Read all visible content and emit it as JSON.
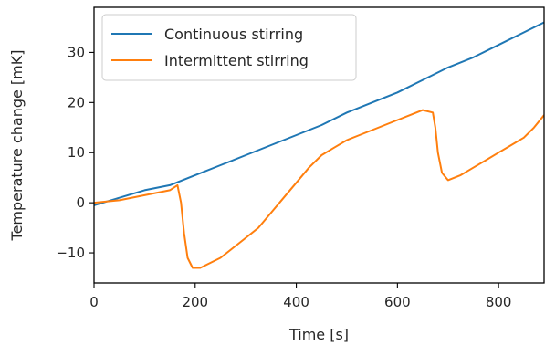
{
  "chart_data": {
    "type": "line",
    "title": "",
    "xlabel": "Time [s]",
    "ylabel": "Temperature change [mK]",
    "xlim": [
      0,
      890
    ],
    "ylim": [
      -16,
      39
    ],
    "xticks": [
      0,
      200,
      400,
      600,
      800
    ],
    "yticks": [
      -10,
      0,
      10,
      20,
      30
    ],
    "grid": false,
    "legend_position": "top-left",
    "series": [
      {
        "name": "Continuous stirring",
        "color": "#1f77b4",
        "x": [
          0,
          50,
          100,
          150,
          200,
          250,
          300,
          350,
          400,
          450,
          500,
          550,
          600,
          650,
          700,
          750,
          800,
          850,
          890
        ],
        "y": [
          -0.5,
          1,
          2.5,
          3.5,
          5.5,
          7.5,
          9.5,
          11.5,
          13.5,
          15.5,
          18,
          20,
          22,
          24.5,
          27,
          29,
          31.5,
          34,
          36
        ]
      },
      {
        "name": "Intermittent stirring",
        "color": "#ff7f0e",
        "x": [
          0,
          50,
          100,
          150,
          165,
          172,
          178,
          185,
          195,
          210,
          230,
          250,
          275,
          300,
          325,
          350,
          375,
          400,
          425,
          450,
          475,
          500,
          525,
          550,
          575,
          600,
          625,
          650,
          670,
          675,
          680,
          688,
          700,
          725,
          750,
          775,
          800,
          825,
          850,
          870,
          890
        ],
        "y": [
          0,
          0.5,
          1.5,
          2.5,
          3.5,
          0,
          -6,
          -11,
          -13,
          -13,
          -12,
          -11,
          -9,
          -7,
          -5,
          -2,
          1,
          4,
          7,
          9.5,
          11,
          12.5,
          13.5,
          14.5,
          15.5,
          16.5,
          17.5,
          18.5,
          18,
          15,
          10,
          6,
          4.5,
          5.5,
          7,
          8.5,
          10,
          11.5,
          13,
          15,
          17.5
        ]
      }
    ]
  }
}
